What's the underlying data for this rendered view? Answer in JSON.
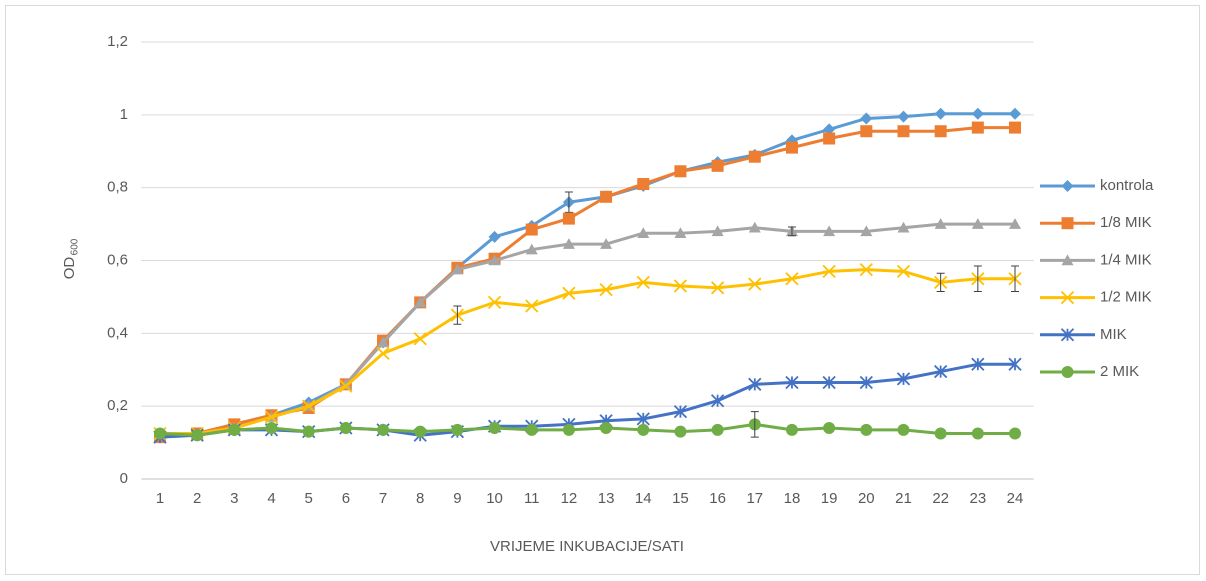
{
  "chart_data": {
    "type": "line",
    "x_label": "VRIJEME INKUBACIJE/SATI",
    "y_label": {
      "text": "OD",
      "subscript": "600"
    },
    "categories": [
      "1",
      "2",
      "3",
      "4",
      "5",
      "6",
      "7",
      "8",
      "9",
      "10",
      "11",
      "12",
      "13",
      "14",
      "15",
      "16",
      "17",
      "18",
      "19",
      "20",
      "21",
      "22",
      "23",
      "24"
    ],
    "ylim": [
      0,
      1.2
    ],
    "yticks": [
      0,
      {
        "value": 0.2,
        "label": "0,2"
      },
      {
        "value": 0.4,
        "label": "0,4"
      },
      {
        "value": 0.6,
        "label": "0,6"
      },
      {
        "value": 0.8,
        "label": "0,8"
      },
      1,
      {
        "value": 1.2,
        "label": "1,2"
      }
    ],
    "grid": true,
    "legend": "right",
    "series": [
      {
        "name": "kontrola",
        "color": "#5b9bd5",
        "marker": "diamond",
        "values": [
          0.12,
          0.125,
          0.15,
          0.175,
          0.21,
          0.26,
          0.375,
          0.485,
          0.58,
          0.665,
          0.695,
          0.76,
          0.775,
          0.805,
          0.845,
          0.87,
          0.89,
          0.93,
          0.96,
          0.99,
          0.995,
          1.003,
          1.003,
          1.003
        ],
        "errors": [
          null,
          null,
          null,
          null,
          null,
          null,
          null,
          null,
          null,
          null,
          null,
          0.028,
          null,
          null,
          null,
          null,
          null,
          null,
          null,
          null,
          null,
          null,
          null,
          null
        ]
      },
      {
        "name": "1/8 MIK",
        "color": "#ed7d31",
        "marker": "square",
        "values": [
          0.115,
          0.125,
          0.15,
          0.175,
          0.195,
          0.26,
          0.38,
          0.485,
          0.58,
          0.605,
          0.685,
          0.715,
          0.775,
          0.81,
          0.845,
          0.86,
          0.885,
          0.91,
          0.935,
          0.955,
          0.955,
          0.955,
          0.965,
          0.965
        ],
        "errors": [
          null,
          null,
          null,
          null,
          null,
          null,
          null,
          null,
          null,
          null,
          null,
          null,
          null,
          null,
          null,
          null,
          null,
          null,
          null,
          null,
          null,
          null,
          null,
          null
        ]
      },
      {
        "name": "1/4 MIK",
        "color": "#a5a5a5",
        "marker": "triangle",
        "values": [
          0.12,
          0.12,
          0.14,
          0.17,
          0.2,
          0.26,
          0.375,
          0.485,
          0.575,
          0.6,
          0.63,
          0.645,
          0.645,
          0.675,
          0.675,
          0.68,
          0.69,
          0.68,
          0.68,
          0.68,
          0.69,
          0.7,
          0.7,
          0.7
        ],
        "errors": [
          null,
          null,
          null,
          null,
          null,
          null,
          null,
          null,
          null,
          null,
          null,
          null,
          null,
          null,
          null,
          null,
          null,
          0.012,
          null,
          null,
          null,
          null,
          null,
          null
        ]
      },
      {
        "name": "1/2 MIK",
        "color": "#ffc000",
        "marker": "x",
        "values": [
          0.125,
          0.125,
          0.14,
          0.17,
          0.2,
          0.255,
          0.345,
          0.385,
          0.45,
          0.485,
          0.475,
          0.51,
          0.52,
          0.54,
          0.53,
          0.525,
          0.535,
          0.55,
          0.57,
          0.575,
          0.57,
          0.54,
          0.55,
          0.55
        ],
        "errors": [
          null,
          null,
          null,
          null,
          null,
          null,
          null,
          null,
          0.025,
          null,
          null,
          null,
          null,
          null,
          null,
          null,
          null,
          null,
          null,
          null,
          null,
          0.025,
          0.035,
          0.035
        ]
      },
      {
        "name": "MIK",
        "color": "#4472c4",
        "marker": "asterisk",
        "values": [
          0.115,
          0.12,
          0.135,
          0.135,
          0.13,
          0.14,
          0.135,
          0.12,
          0.13,
          0.145,
          0.145,
          0.15,
          0.16,
          0.165,
          0.185,
          0.215,
          0.26,
          0.265,
          0.265,
          0.265,
          0.275,
          0.295,
          0.315,
          0.315
        ],
        "errors": [
          null,
          null,
          null,
          null,
          null,
          null,
          null,
          null,
          null,
          null,
          null,
          null,
          null,
          null,
          null,
          null,
          null,
          null,
          null,
          null,
          null,
          null,
          null,
          null
        ]
      },
      {
        "name": "2 MIK",
        "color": "#70ad47",
        "marker": "circle",
        "values": [
          0.125,
          0.12,
          0.135,
          0.14,
          0.13,
          0.14,
          0.135,
          0.13,
          0.135,
          0.14,
          0.135,
          0.135,
          0.14,
          0.135,
          0.13,
          0.135,
          0.15,
          0.135,
          0.14,
          0.135,
          0.135,
          0.125,
          0.125,
          0.125
        ],
        "errors": [
          null,
          null,
          null,
          null,
          null,
          null,
          null,
          null,
          null,
          null,
          null,
          null,
          null,
          null,
          null,
          null,
          0.035,
          null,
          null,
          null,
          null,
          null,
          null,
          null
        ]
      }
    ]
  }
}
